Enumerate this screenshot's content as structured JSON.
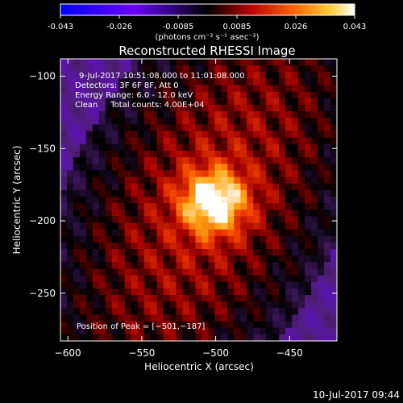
{
  "colorbar": {
    "ticks": [
      "-0.043",
      "-0.026",
      "-0.0085",
      "0.0085",
      "0.026",
      "0.043"
    ],
    "unit_label": "(photons cm⁻² s⁻¹ asec⁻²)"
  },
  "chart_data": {
    "type": "heatmap",
    "title": "Reconstructed RHESSI Image",
    "xlabel": "Heliocentric X (arcsec)",
    "ylabel": "Heliocentric Y (arcsec)",
    "xlim": [
      -605,
      -418
    ],
    "ylim": [
      -283,
      -88
    ],
    "x_ticks": [
      -600,
      -550,
      -500,
      -450
    ],
    "y_ticks": [
      -100,
      -150,
      -200,
      -250
    ],
    "x_tick_labels": [
      "−600",
      "−550",
      "−500",
      "−450"
    ],
    "y_tick_labels": [
      "−100",
      "−150",
      "−200",
      "−250"
    ],
    "colormap": "red-temperature",
    "value_range": [
      -0.043,
      0.043
    ],
    "peak": [
      -501,
      -187
    ],
    "annotations": [
      "9-Jul-2017 10:51:08.000 to 11:01:08.000",
      "Detectors: 3F 6F 8F, Att 0",
      "Energy Range: 6.0 - 12.0 keV",
      "Clean     Total counts: 4.00E+04",
      "Position of Peak = [−501,−187]"
    ]
  },
  "footer": {
    "timestamp": "10-Jul-2017 09:44"
  }
}
